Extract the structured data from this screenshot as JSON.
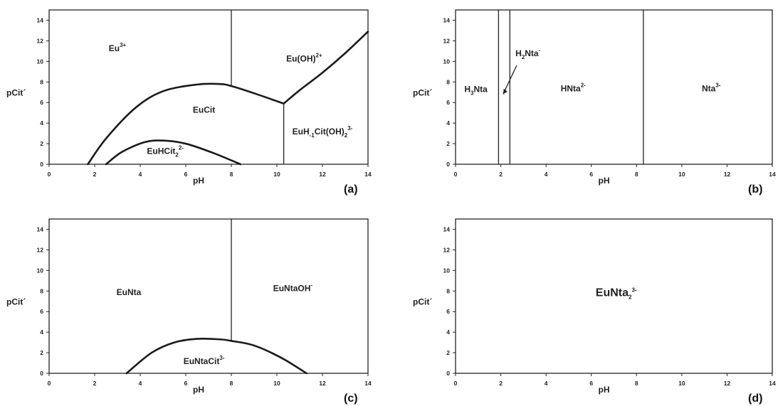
{
  "chart_data": [
    {
      "panel": "(a)",
      "type": "area",
      "xlabel": "pH",
      "ylabel": "pCit´",
      "xlim": [
        0,
        14
      ],
      "ylim": [
        0,
        15
      ],
      "x_ticks": [
        "0",
        "2",
        "4",
        "6",
        "8",
        "10",
        "12",
        "14"
      ],
      "y_ticks": [
        "0",
        "2",
        "4",
        "6",
        "8",
        "10",
        "12",
        "14"
      ],
      "regions": [
        {
          "name": "Eu",
          "sup": "3+",
          "x": 3.0,
          "y": 11.0
        },
        {
          "name": "Eu(OH)",
          "sup": "2+",
          "x": 11.2,
          "y": 10.0
        },
        {
          "name": "EuCit",
          "x": 6.8,
          "y": 5.0
        },
        {
          "name": "EuHCit",
          "sub": "2",
          "sup": "2-",
          "x": 5.1,
          "y": 1.0
        },
        {
          "name": "EuH",
          "sub": "-1",
          "name2": "Cit(OH)",
          "sub2": "2",
          "sup": "3-",
          "x": 12.0,
          "y": 2.9
        }
      ],
      "boundaries": [
        {
          "kind": "curve",
          "points": [
            [
              1.7,
              0
            ],
            [
              2.5,
              2.5
            ],
            [
              3.8,
              5.5
            ],
            [
              5.0,
              7.1
            ],
            [
              6.5,
              7.75
            ],
            [
              7.5,
              7.8
            ],
            [
              8.0,
              7.6
            ],
            [
              9.0,
              6.9
            ],
            [
              10.3,
              5.9
            ]
          ]
        },
        {
          "kind": "curve",
          "points": [
            [
              10.3,
              5.9
            ],
            [
              11.0,
              7.2
            ],
            [
              12.0,
              8.9
            ],
            [
              13.0,
              10.8
            ],
            [
              14.0,
              12.9
            ]
          ]
        },
        {
          "kind": "curve",
          "points": [
            [
              2.5,
              0
            ],
            [
              3.2,
              1.2
            ],
            [
              4.2,
              2.15
            ],
            [
              5.0,
              2.3
            ],
            [
              6.0,
              2.0
            ],
            [
              7.2,
              1.1
            ],
            [
              8.4,
              0
            ]
          ]
        },
        {
          "kind": "vline",
          "x": 8.0,
          "y_from": 7.6,
          "y_to": 15
        },
        {
          "kind": "vline",
          "x": 10.3,
          "y_from": 0,
          "y_to": 5.9
        }
      ]
    },
    {
      "panel": "(b)",
      "type": "area",
      "xlabel": "pH",
      "ylabel": "pCit´",
      "xlim": [
        0,
        14
      ],
      "ylim": [
        0,
        15
      ],
      "x_ticks": [
        "0",
        "2",
        "4",
        "6",
        "8",
        "10",
        "12",
        "14"
      ],
      "y_ticks": [
        "0",
        "2",
        "4",
        "6",
        "8",
        "10",
        "12",
        "14"
      ],
      "regions": [
        {
          "name": "H",
          "sub": "3",
          "name2": "Nta",
          "x": 0.9,
          "y": 7.0
        },
        {
          "name": "H",
          "sub": "2",
          "name2": "Nta",
          "sup": "-",
          "x": 3.2,
          "y": 10.5
        },
        {
          "name": "HNta",
          "sup": "2-",
          "x": 5.2,
          "y": 7.1
        },
        {
          "name": "Nta",
          "sup": "3-",
          "x": 11.3,
          "y": 7.1
        }
      ],
      "boundaries": [
        {
          "kind": "vline",
          "x": 1.9,
          "y_from": 0,
          "y_to": 15
        },
        {
          "kind": "vline",
          "x": 2.4,
          "y_from": 0,
          "y_to": 15
        },
        {
          "kind": "vline",
          "x": 8.3,
          "y_from": 0,
          "y_to": 15
        }
      ]
    },
    {
      "panel": "(c)",
      "type": "area",
      "xlabel": "pH",
      "ylabel": "pCit´",
      "xlim": [
        0,
        14
      ],
      "ylim": [
        0,
        15
      ],
      "x_ticks": [
        "0",
        "2",
        "4",
        "6",
        "8",
        "10",
        "12",
        "14"
      ],
      "y_ticks": [
        "0",
        "2",
        "4",
        "6",
        "8",
        "10",
        "12",
        "14"
      ],
      "regions": [
        {
          "name": "EuNta",
          "x": 3.5,
          "y": 7.6
        },
        {
          "name": "EuNtaOH",
          "sup": "-",
          "x": 10.7,
          "y": 8.0
        },
        {
          "name": "EuNtaCit",
          "sup": "3-",
          "x": 6.8,
          "y": 0.9
        }
      ],
      "boundaries": [
        {
          "kind": "curve",
          "points": [
            [
              3.4,
              0
            ],
            [
              4.5,
              2.0
            ],
            [
              5.5,
              3.0
            ],
            [
              6.5,
              3.35
            ],
            [
              7.5,
              3.3
            ],
            [
              8.0,
              3.15
            ],
            [
              9.0,
              2.7
            ],
            [
              10.2,
              1.5
            ],
            [
              11.3,
              0
            ]
          ]
        },
        {
          "kind": "vline",
          "x": 8.0,
          "y_from": 3.15,
          "y_to": 15
        }
      ]
    },
    {
      "panel": "(d)",
      "type": "area",
      "xlabel": "pH",
      "ylabel": "pCit´",
      "xlim": [
        0,
        14
      ],
      "ylim": [
        0,
        15
      ],
      "x_ticks": [
        "0",
        "2",
        "4",
        "6",
        "8",
        "10",
        "12",
        "14"
      ],
      "y_ticks": [
        "0",
        "2",
        "4",
        "6",
        "8",
        "10",
        "12",
        "14"
      ],
      "regions": [
        {
          "name": "EuNta",
          "sub": "2",
          "sup": "3-",
          "x": 7.1,
          "y": 7.5,
          "big": true
        }
      ],
      "boundaries": []
    }
  ]
}
